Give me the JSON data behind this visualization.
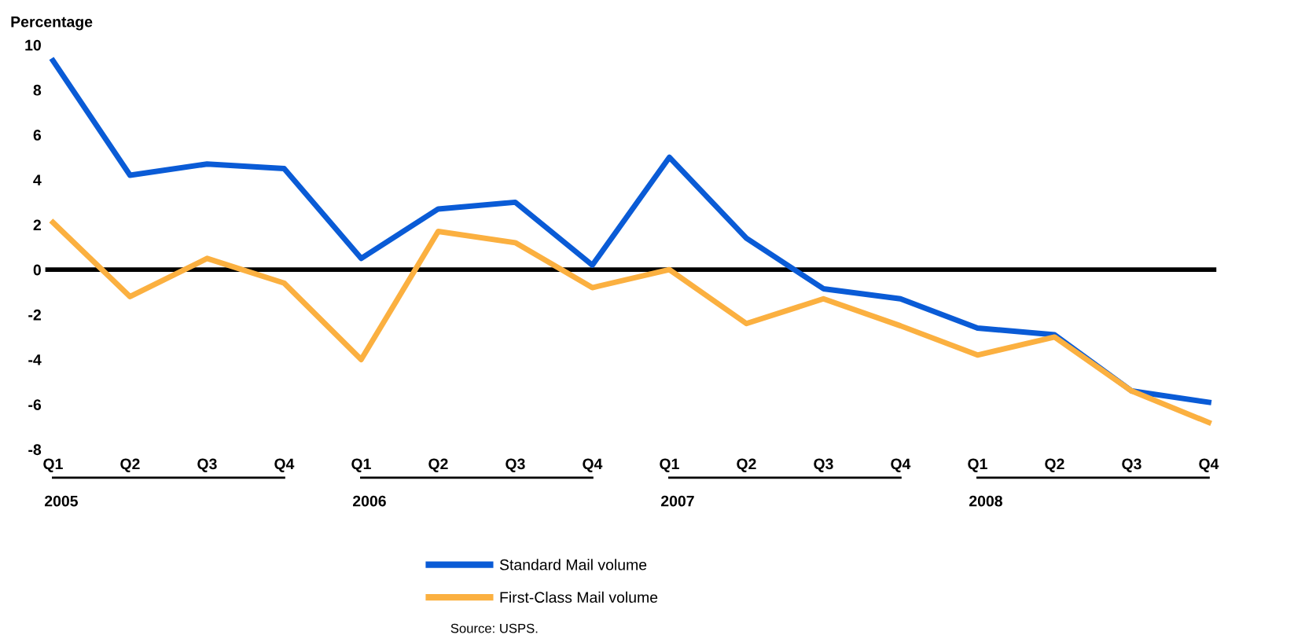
{
  "chart_data": {
    "type": "line",
    "ylabel": "Percentage",
    "categories": [
      "Q1\n2005",
      "Q2",
      "Q3",
      "Q4",
      "Q1\n2006",
      "Q2",
      "Q3",
      "Q4",
      "Q1\n2007",
      "Q2",
      "Q3",
      "Q4",
      "Q1\n2008",
      "Q2",
      "Q3",
      "Q4"
    ],
    "series": [
      {
        "name": "Standard Mail volume",
        "color": "#0a5bd6",
        "values": [
          9.3,
          4.2,
          4.7,
          4.5,
          0.5,
          2.7,
          3.0,
          0.2,
          5.0,
          1.4,
          -0.85,
          -1.3,
          -2.6,
          -2.9,
          -5.4,
          -5.9
        ]
      },
      {
        "name": "First-Class Mail volume",
        "color": "#fbb040",
        "values": [
          2.1,
          -1.2,
          0.5,
          -0.6,
          -4.0,
          1.7,
          1.2,
          -0.8,
          0.0,
          -2.4,
          -1.3,
          -2.5,
          -3.8,
          -3.0,
          -5.4,
          -6.8
        ]
      }
    ],
    "ylim": [
      -8,
      10
    ],
    "yticks": [
      -8,
      -6,
      -4,
      -2,
      0,
      2,
      4,
      6,
      8,
      10
    ],
    "ref_lines": [
      {
        "axis": "y",
        "value": 0,
        "color": "#000000"
      }
    ],
    "grid": false,
    "legend": "bottom",
    "marker": "none",
    "line_style": "solid",
    "annotations": [
      "Source: USPS."
    ]
  }
}
